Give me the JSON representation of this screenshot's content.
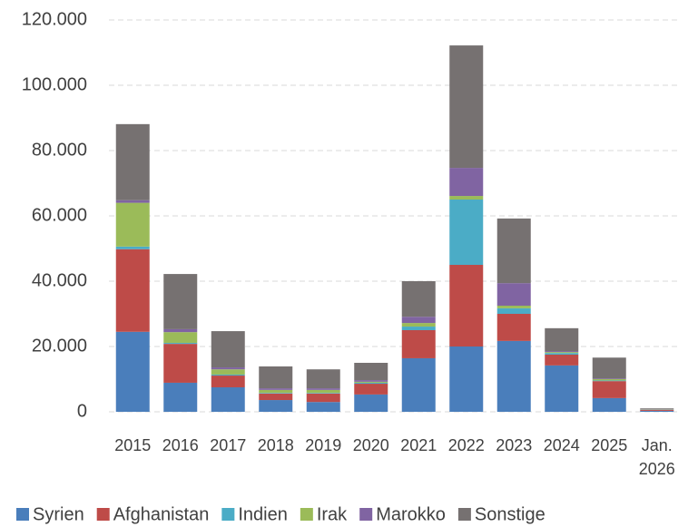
{
  "chart_data": {
    "type": "stacked_bar",
    "categories": [
      "2015",
      "2016",
      "2017",
      "2018",
      "2019",
      "2020",
      "2021",
      "2022",
      "2023",
      "2024",
      "2025",
      "Jan. 2026"
    ],
    "series": [
      {
        "name": "Syrien",
        "color": "#4a7ebb",
        "values": [
          24500,
          8900,
          7500,
          3600,
          3000,
          5300,
          16400,
          20000,
          21700,
          14200,
          4200,
          300
        ]
      },
      {
        "name": "Afghanistan",
        "color": "#be4b48",
        "values": [
          25300,
          11900,
          3600,
          2000,
          2600,
          3300,
          8600,
          25000,
          8300,
          3300,
          5200,
          300
        ]
      },
      {
        "name": "Indien",
        "color": "#4bacc6",
        "values": [
          800,
          300,
          300,
          200,
          200,
          300,
          1100,
          20000,
          1700,
          500,
          200,
          50
        ]
      },
      {
        "name": "Irak",
        "color": "#9bbb59",
        "values": [
          13400,
          3300,
          1600,
          900,
          900,
          300,
          1100,
          1100,
          800,
          300,
          400,
          50
        ]
      },
      {
        "name": "Marokko",
        "color": "#8064a2",
        "values": [
          800,
          900,
          600,
          500,
          500,
          500,
          1900,
          8600,
          6900,
          300,
          200,
          50
        ]
      },
      {
        "name": "Sonstige",
        "color": "#767171",
        "values": [
          23300,
          16900,
          11100,
          6700,
          5800,
          5300,
          10900,
          37500,
          19800,
          7000,
          6400,
          300
        ]
      }
    ],
    "ylim": [
      0,
      120000
    ],
    "yticks": [
      0,
      {
        "value": 20000,
        "label": "20.000"
      },
      {
        "value": 40000,
        "label": "40.000"
      },
      {
        "value": 60000,
        "label": "60.000"
      },
      {
        "value": 80000,
        "label": "80.000"
      },
      {
        "value": 100000,
        "label": "100.000"
      },
      {
        "value": 120000,
        "label": "120.000"
      }
    ],
    "grid": true,
    "legend": "bottom"
  }
}
